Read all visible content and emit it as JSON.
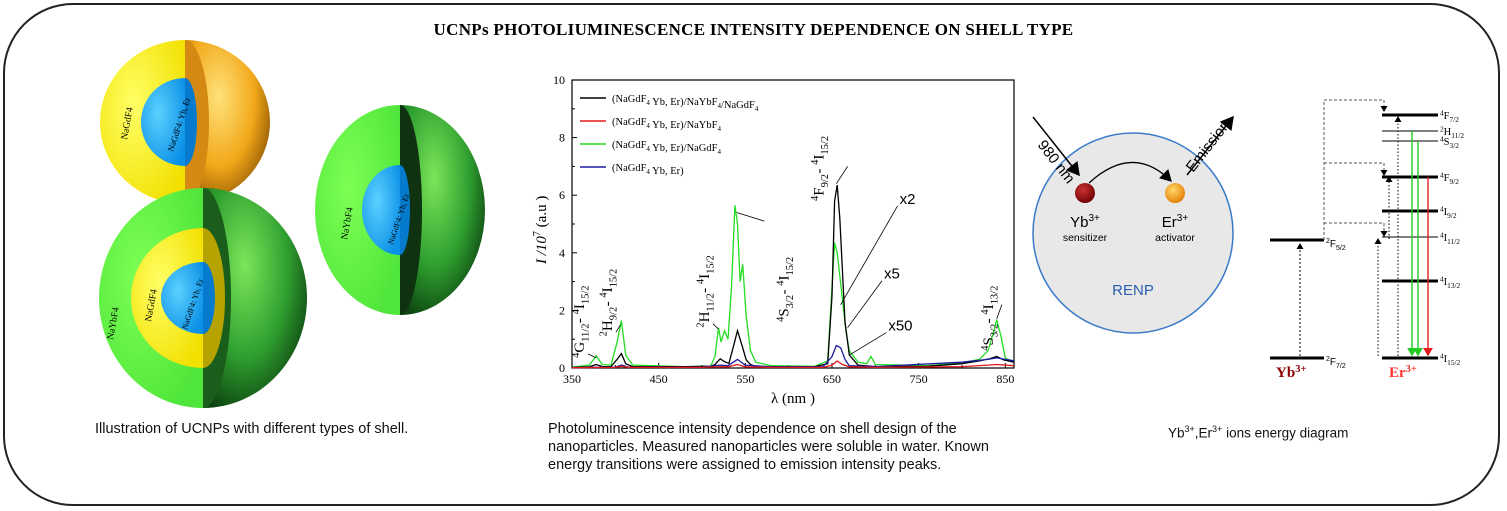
{
  "title": "UCNPs PHOTOLIUMINESCENCE INTENSITY DEPENDENCE ON SHELL TYPE",
  "illustration": {
    "caption": "Illustration of UCNPs with different types of shell.",
    "core_label": "NaGdF4: Yb, Er",
    "shell_gd": "NaGdF4",
    "shell_yb": "NaYbF4"
  },
  "chart_caption": "Photoluminescence intensity dependence on shell design of  the nanoparticles. Measured nanoparticles were soluble in water. Known energy transitions were assigned to emission intensity peaks.",
  "chart_data": {
    "type": "line",
    "xlabel": "λ (nm )",
    "ylabel": "I /10^7 (a.u )",
    "xlim": [
      350,
      860
    ],
    "ylim": [
      0,
      10
    ],
    "xticks": [
      350,
      450,
      550,
      650,
      750,
      850
    ],
    "yticks": [
      0,
      2,
      4,
      6,
      8,
      10
    ],
    "legend_position": "top-left",
    "series": [
      {
        "name": "(NaGdF4 Yb, Er)/NaYbF4/NaGdF4",
        "color": "#000000",
        "x": [
          350,
          370,
          378,
          385,
          395,
          402,
          407,
          412,
          420,
          480,
          510,
          515,
          521,
          526,
          531,
          536,
          541,
          546,
          551,
          556,
          562,
          580,
          630,
          645,
          650,
          653,
          656,
          659,
          662,
          665,
          670,
          680,
          700,
          760,
          800,
          820,
          832,
          840,
          848,
          860
        ],
        "y": [
          0.02,
          0.04,
          0.12,
          0.05,
          0.05,
          0.3,
          0.5,
          0.15,
          0.05,
          0.05,
          0.06,
          0.12,
          0.32,
          0.22,
          0.16,
          0.72,
          1.3,
          0.8,
          0.28,
          0.12,
          0.05,
          0.04,
          0.05,
          0.15,
          2.5,
          5.8,
          6.35,
          5.2,
          3.4,
          1.6,
          0.45,
          0.1,
          0.05,
          0.06,
          0.15,
          0.25,
          0.32,
          0.4,
          0.28,
          0.2
        ]
      },
      {
        "name": "(NaGdF4 Yb, Er)/NaYbF4",
        "color": "#e31a1c",
        "x": [
          350,
          400,
          407,
          415,
          500,
          521,
          530,
          541,
          550,
          580,
          640,
          650,
          656,
          662,
          670,
          700,
          800,
          830,
          840,
          860
        ],
        "y": [
          0.01,
          0.02,
          0.06,
          0.02,
          0.02,
          0.05,
          0.04,
          0.12,
          0.04,
          0.02,
          0.02,
          0.1,
          0.24,
          0.12,
          0.04,
          0.02,
          0.05,
          0.1,
          0.12,
          0.08
        ]
      },
      {
        "name": "(NaGdF4 Yb, Er)/NaGdF4",
        "color": "#22dd22",
        "x": [
          350,
          370,
          378,
          385,
          395,
          402,
          407,
          412,
          420,
          480,
          510,
          515,
          519,
          522,
          526,
          530,
          534,
          538,
          541,
          544,
          547,
          551,
          556,
          562,
          580,
          630,
          645,
          650,
          653,
          656,
          659,
          662,
          666,
          670,
          680,
          690,
          695,
          700,
          760,
          800,
          820,
          830,
          836,
          840,
          845,
          850,
          860
        ],
        "y": [
          0.03,
          0.1,
          0.42,
          0.12,
          0.1,
          0.9,
          1.65,
          0.45,
          0.1,
          0.05,
          0.07,
          0.4,
          1.4,
          0.9,
          1.3,
          1.0,
          2.8,
          5.65,
          5.0,
          3.0,
          3.6,
          1.8,
          0.6,
          0.2,
          0.08,
          0.06,
          0.25,
          2.8,
          4.35,
          4.0,
          3.2,
          2.4,
          1.3,
          0.6,
          0.2,
          0.15,
          0.4,
          0.12,
          0.08,
          0.18,
          0.3,
          0.6,
          1.2,
          1.68,
          1.1,
          0.35,
          0.2
        ]
      },
      {
        "name": "(NaGdF4 Yb, Er)",
        "color": "#1a1aa0",
        "x": [
          350,
          400,
          407,
          415,
          500,
          521,
          530,
          541,
          550,
          580,
          640,
          650,
          655,
          660,
          665,
          670,
          700,
          800,
          830,
          840,
          850,
          860
        ],
        "y": [
          0.01,
          0.03,
          0.1,
          0.03,
          0.03,
          0.1,
          0.08,
          0.3,
          0.1,
          0.04,
          0.05,
          0.4,
          0.78,
          0.7,
          0.3,
          0.08,
          0.05,
          0.2,
          0.3,
          0.35,
          0.3,
          0.25
        ]
      }
    ],
    "annotations": [
      {
        "text": "4G11/2 - 4I15/2"
      },
      {
        "text": "2H9/2 - 4I15/2"
      },
      {
        "text": "2H11/2 - 4I15/2"
      },
      {
        "text": "4S3/2 - 4I15/2"
      },
      {
        "text": "4F9/2 - 4I15/2"
      },
      {
        "text": "4S3/2 - 4I13/2"
      },
      {
        "text": "x2"
      },
      {
        "text": "x5"
      },
      {
        "text": "x50"
      }
    ]
  },
  "renp": {
    "label": "RENP",
    "excitation": "980 nm",
    "emission": "Emission",
    "sensitizer_ion": "Yb3+",
    "sensitizer_role": "sensitizer",
    "activator_ion": "Er3+",
    "activator_role": "activator"
  },
  "energy": {
    "caption": "Yb3+,Er3+ ions energy diagram",
    "yb_label": "Yb3+",
    "er_label": "Er3+",
    "yb_levels": [
      "2F5/2",
      "2F7/2"
    ],
    "er_levels": [
      "4F7/2",
      "2H11/2",
      "4S3/2",
      "4F9/2",
      "4I9/2",
      "4I11/2",
      "4I13/2",
      "4I15/2"
    ],
    "colors": {
      "yb": "#8b0000",
      "er": "#ff3030",
      "green": "#22cc22",
      "red": "#e31a1c"
    }
  }
}
